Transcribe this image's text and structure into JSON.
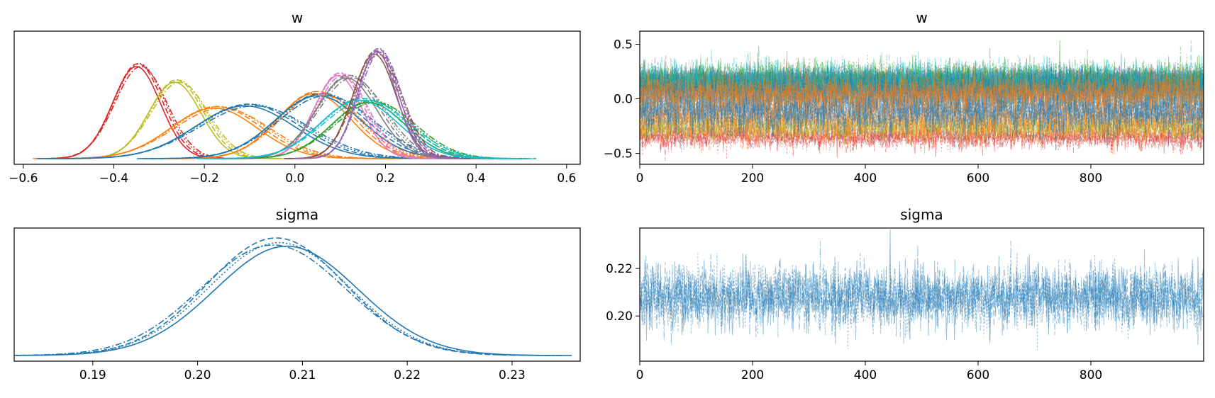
{
  "chart_data": [
    {
      "type": "line",
      "subtype": "kde",
      "title": "w",
      "xlim": [
        -0.62,
        0.63
      ],
      "xticks": [
        "−0.6",
        "−0.4",
        "−0.2",
        "0.0",
        "0.2",
        "0.4",
        "0.6"
      ],
      "xtick_values": [
        -0.6,
        -0.4,
        -0.2,
        0.0,
        0.2,
        0.4,
        0.6
      ],
      "y_axis_visible": false,
      "chain_linestyles": [
        "solid",
        "dashed",
        "dotted",
        "dashdot"
      ],
      "series": [
        {
          "mean": -0.345,
          "sd": 0.055,
          "peak": 0.82,
          "color": "#d62728"
        },
        {
          "mean": -0.26,
          "sd": 0.06,
          "peak": 0.68,
          "color": "#bcbd22"
        },
        {
          "mean": -0.17,
          "sd": 0.1,
          "peak": 0.45,
          "color": "#ff7f0e"
        },
        {
          "mean": -0.1,
          "sd": 0.115,
          "peak": 0.47,
          "color": "#1f77b4"
        },
        {
          "mean": 0.05,
          "sd": 0.085,
          "peak": 0.58,
          "color": "#ff7f0e"
        },
        {
          "mean": 0.06,
          "sd": 0.1,
          "peak": 0.56,
          "color": "#1f77b4"
        },
        {
          "mean": 0.1,
          "sd": 0.055,
          "peak": 0.74,
          "color": "#e377c2"
        },
        {
          "mean": 0.12,
          "sd": 0.07,
          "peak": 0.72,
          "color": "#7f7f7f"
        },
        {
          "mean": 0.17,
          "sd": 0.085,
          "peak": 0.5,
          "color": "#2ca02c"
        },
        {
          "mean": 0.15,
          "sd": 0.09,
          "peak": 0.52,
          "color": "#17becf"
        },
        {
          "mean": 0.18,
          "sd": 0.05,
          "peak": 0.93,
          "color": "#8c564b"
        },
        {
          "mean": 0.185,
          "sd": 0.045,
          "peak": 0.95,
          "color": "#9467bd"
        }
      ]
    },
    {
      "type": "line",
      "subtype": "trace",
      "title": "w",
      "xlim": [
        0,
        1000
      ],
      "ylim": [
        -0.6,
        0.62
      ],
      "xticks": [
        "0",
        "200",
        "400",
        "600",
        "800"
      ],
      "xtick_values": [
        0,
        200,
        400,
        600,
        800
      ],
      "yticks": [
        "−0.5",
        "0.0",
        "0.5"
      ],
      "ytick_values": [
        -0.5,
        0.0,
        0.5
      ],
      "n_draws": 1000,
      "series": [
        {
          "mean": -0.345,
          "sd": 0.055,
          "color": "#d62728"
        },
        {
          "mean": -0.26,
          "sd": 0.06,
          "color": "#bcbd22"
        },
        {
          "mean": -0.17,
          "sd": 0.1,
          "color": "#ff7f0e"
        },
        {
          "mean": -0.1,
          "sd": 0.115,
          "color": "#1f77b4"
        },
        {
          "mean": 0.18,
          "sd": 0.05,
          "color": "#8c564b"
        },
        {
          "mean": 0.185,
          "sd": 0.045,
          "color": "#9467bd"
        },
        {
          "mean": 0.1,
          "sd": 0.055,
          "color": "#e377c2"
        },
        {
          "mean": 0.12,
          "sd": 0.07,
          "color": "#7f7f7f"
        },
        {
          "mean": 0.17,
          "sd": 0.085,
          "color": "#2ca02c"
        },
        {
          "mean": 0.15,
          "sd": 0.09,
          "color": "#17becf"
        },
        {
          "mean": 0.06,
          "sd": 0.1,
          "color": "#1f77b4"
        },
        {
          "mean": 0.05,
          "sd": 0.085,
          "color": "#ff7f0e"
        }
      ]
    },
    {
      "type": "line",
      "subtype": "kde",
      "title": "sigma",
      "xlim": [
        0.1825,
        0.2365
      ],
      "xticks": [
        "0.19",
        "0.20",
        "0.21",
        "0.22",
        "0.23"
      ],
      "xtick_values": [
        0.19,
        0.2,
        0.21,
        0.22,
        0.23
      ],
      "y_axis_visible": false,
      "chain_linestyles": [
        "solid",
        "dashed",
        "dotted",
        "dashdot"
      ],
      "series": [
        {
          "mean": 0.2085,
          "sd": 0.0068,
          "peak": 0.93,
          "color": "#1f77b4",
          "linestyle": "solid"
        },
        {
          "mean": 0.2075,
          "sd": 0.0066,
          "peak": 1.0,
          "color": "#1f77b4",
          "linestyle": "dashed"
        },
        {
          "mean": 0.2078,
          "sd": 0.0067,
          "peak": 0.96,
          "color": "#1f77b4",
          "linestyle": "dotted"
        },
        {
          "mean": 0.2072,
          "sd": 0.0069,
          "peak": 0.94,
          "color": "#1f77b4",
          "linestyle": "dashdot"
        }
      ]
    },
    {
      "type": "line",
      "subtype": "trace",
      "title": "sigma",
      "xlim": [
        0,
        1000
      ],
      "ylim": [
        0.181,
        0.237
      ],
      "xticks": [
        "0",
        "200",
        "400",
        "600",
        "800"
      ],
      "xtick_values": [
        0,
        200,
        400,
        600,
        800
      ],
      "yticks": [
        "0.20",
        "0.22"
      ],
      "ytick_values": [
        0.2,
        0.22
      ],
      "n_draws": 1000,
      "series": [
        {
          "mean": 0.208,
          "sd": 0.0066,
          "color": "#1f77b4"
        }
      ]
    }
  ]
}
